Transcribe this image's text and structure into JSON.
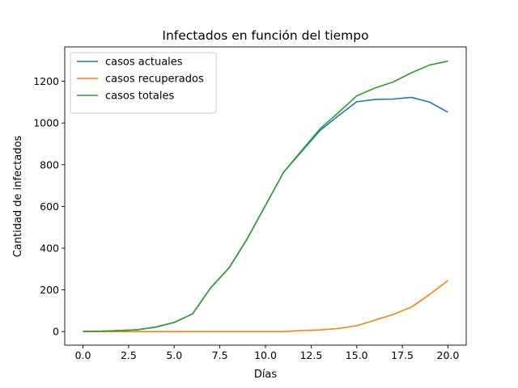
{
  "chart_data": {
    "type": "line",
    "title": "Infectados en función del tiempo",
    "xlabel": "Días",
    "ylabel": "Cantidad de infectados",
    "xlim": [
      -1,
      21
    ],
    "ylim": [
      -65,
      1365
    ],
    "xticks": [
      0.0,
      2.5,
      5.0,
      7.5,
      10.0,
      12.5,
      15.0,
      17.5,
      20.0
    ],
    "xtick_labels": [
      "0.0",
      "2.5",
      "5.0",
      "7.5",
      "10.0",
      "12.5",
      "15.0",
      "17.5",
      "20.0"
    ],
    "yticks": [
      0,
      200,
      400,
      600,
      800,
      1000,
      1200
    ],
    "ytick_labels": [
      "0",
      "200",
      "400",
      "600",
      "800",
      "1000",
      "1200"
    ],
    "grid": false,
    "legend_position": "top-left",
    "x": [
      0,
      1,
      2,
      3,
      4,
      5,
      6,
      7,
      8,
      9,
      10,
      11,
      12,
      13,
      14,
      15,
      16,
      17,
      18,
      19,
      20
    ],
    "series": [
      {
        "name": "casos actuales",
        "color": "#1f77b4",
        "values": [
          1,
          2,
          5,
          9,
          22,
          44,
          85,
          210,
          305,
          445,
          605,
          765,
          865,
          965,
          1035,
          1102,
          1113,
          1115,
          1123,
          1100,
          1052
        ]
      },
      {
        "name": "casos recuperados",
        "color": "#ff7f0e",
        "values": [
          0,
          0,
          0,
          0,
          0,
          0,
          0,
          0,
          0,
          0,
          0,
          0,
          5,
          8,
          15,
          28,
          55,
          82,
          118,
          178,
          245
        ]
      },
      {
        "name": "casos totales",
        "color": "#2ca02c",
        "values": [
          1,
          2,
          5,
          9,
          22,
          44,
          85,
          210,
          305,
          445,
          605,
          765,
          870,
          973,
          1050,
          1130,
          1168,
          1197,
          1241,
          1278,
          1297
        ]
      }
    ]
  }
}
